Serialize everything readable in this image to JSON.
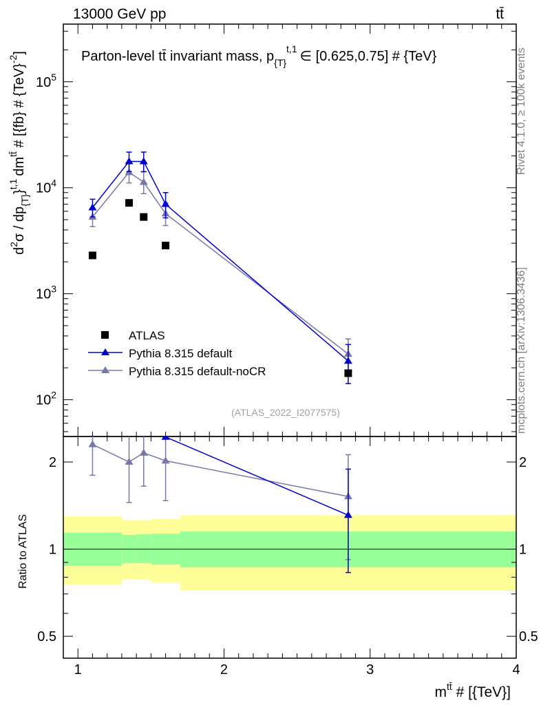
{
  "header": {
    "left": "13000 GeV pp",
    "right": "tt̄"
  },
  "side_labels": {
    "rivet": "Rivet 4.1.0, ≥ 100k events",
    "mcplots": "mcplots.cern.ch [arXiv:1306.3436]"
  },
  "chart_data": [
    {
      "type": "scatter",
      "panel": "main",
      "title": "Parton-level tt̄ invariant mass, p_{T}^{t,1} ∈ [0.625,0.75] # {TeV}",
      "title_parts": {
        "main": "Parton-level t",
        "tbar": "t̄",
        "mid": " invariant mass, p",
        "sub": "{T}",
        "sup": "t,1",
        "end": "∈ [0.625,0.75] # {TeV}"
      },
      "ylabel": "d²σ / dp_{T}^{t,1} dm^{tt̄} # [{fb} # {TeV}⁻²]",
      "ylabel_parts": {
        "a": "d",
        "a_sup": "2",
        "b": "σ / dp",
        "b_sub": "{T}",
        "c": "}",
        "c_sup": "t,1",
        "d": "dm",
        "d_sup": "tt̄",
        "e": " # [{fb} # {TeV}",
        "e_sup": "-2",
        "f": "]"
      },
      "yscale": "log",
      "ylim": [
        45,
        350000
      ],
      "xlim": [
        0.9,
        4.0
      ],
      "yticks": [
        {
          "value": 100,
          "base": "10",
          "exp": "2"
        },
        {
          "value": 1000,
          "base": "10",
          "exp": "3"
        },
        {
          "value": 10000,
          "base": "10",
          "exp": "4"
        },
        {
          "value": 100000,
          "base": "10",
          "exp": "5"
        }
      ],
      "watermark": "(ATLAS_2022_I2077575)",
      "legend_position": "lower-left",
      "series": [
        {
          "name": "ATLAS",
          "marker": "square",
          "color": "#000000",
          "x": [
            1.1,
            1.35,
            1.45,
            1.6,
            2.85
          ],
          "y": [
            2300,
            7200,
            5300,
            2850,
            178
          ],
          "yerr_low": [
            0,
            0,
            0,
            0,
            0
          ],
          "yerr_high": [
            0,
            0,
            0,
            0,
            0
          ]
        },
        {
          "name": "Pythia 8.315 default",
          "marker": "triangle",
          "color": "#0000cc",
          "x": [
            1.1,
            1.35,
            1.45,
            1.6,
            2.85
          ],
          "y": [
            6500,
            17700,
            17700,
            7000,
            232
          ],
          "yerr_low": [
            1200,
            3500,
            3500,
            1800,
            90
          ],
          "yerr_high": [
            1300,
            4000,
            4000,
            2000,
            100
          ]
        },
        {
          "name": "Pythia 8.315 default-noCR",
          "marker": "triangle",
          "color": "#7878a8",
          "x": [
            1.1,
            1.35,
            1.45,
            1.6,
            2.85
          ],
          "y": [
            5300,
            14000,
            11300,
            5700,
            270
          ],
          "yerr_low": [
            1000,
            2900,
            2500,
            1300,
            100
          ],
          "yerr_high": [
            1100,
            3200,
            2800,
            1500,
            105
          ]
        }
      ]
    },
    {
      "type": "scatter",
      "panel": "ratio",
      "ylabel": "Ratio to ATLAS",
      "xlabel": "m^{tt̄} # [{TeV}]",
      "xlabel_parts": {
        "a": "m",
        "a_sup": "tt̄",
        "b": " # [{TeV}]"
      },
      "yscale": "log",
      "ylim": [
        0.42,
        2.45
      ],
      "xlim": [
        0.9,
        4.0
      ],
      "xticks": [
        1,
        2,
        3,
        4
      ],
      "yticks": [
        0.5,
        1,
        2
      ],
      "reference_line": 1,
      "bands": [
        {
          "x0": 0.9,
          "x1": 1.3,
          "inner": [
            0.875,
            1.14
          ],
          "outer": [
            0.755,
            1.3
          ]
        },
        {
          "x0": 1.3,
          "x1": 1.4,
          "inner": [
            0.895,
            1.12
          ],
          "outer": [
            0.785,
            1.26
          ]
        },
        {
          "x0": 1.4,
          "x1": 1.5,
          "inner": [
            0.895,
            1.125
          ],
          "outer": [
            0.785,
            1.26
          ]
        },
        {
          "x0": 1.5,
          "x1": 1.7,
          "inner": [
            0.885,
            1.13
          ],
          "outer": [
            0.765,
            1.27
          ]
        },
        {
          "x0": 1.7,
          "x1": 4.0,
          "inner": [
            0.865,
            1.15
          ],
          "outer": [
            0.72,
            1.31
          ]
        }
      ],
      "series": [
        {
          "name": "Pythia 8.315 default",
          "color": "#0000cc",
          "x": [
            1.6,
            2.85
          ],
          "y": [
            2.44,
            1.31
          ],
          "yerr_low": [
            0,
            0.48
          ],
          "yerr_high": [
            0,
            0.58
          ]
        },
        {
          "name": "Pythia 8.315 default-noCR",
          "color": "#7878a8",
          "x": [
            1.1,
            1.35,
            1.45,
            1.6,
            2.85
          ],
          "y": [
            2.3,
            2.0,
            2.15,
            2.02,
            1.52
          ],
          "yerr_low": [
            0.5,
            0.55,
            0.5,
            0.55,
            0.6
          ],
          "yerr_high": [
            0.5,
            0.55,
            0.5,
            0.55,
            0.6
          ]
        }
      ]
    }
  ]
}
